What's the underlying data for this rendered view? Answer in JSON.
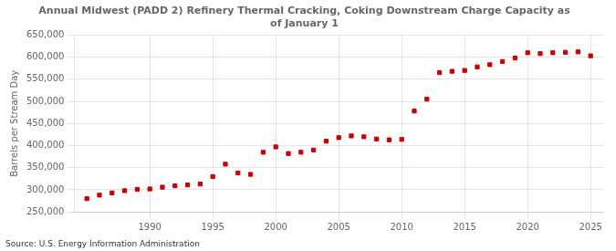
{
  "chart_data": {
    "type": "scatter",
    "title": "Annual Midwest (PADD 2) Refinery Thermal Cracking, Coking Downstream Charge Capacity as\nof January 1",
    "ylabel": "Barrels per Stream Day",
    "source": "Source: U.S. Energy Information Administration",
    "color": "#cc0000",
    "marker": "square",
    "grid": true,
    "x": [
      1985,
      1986,
      1987,
      1988,
      1989,
      1990,
      1991,
      1992,
      1993,
      1994,
      1995,
      1996,
      1997,
      1998,
      1999,
      2000,
      2001,
      2002,
      2003,
      2004,
      2005,
      2006,
      2007,
      2008,
      2009,
      2010,
      2011,
      2012,
      2013,
      2014,
      2015,
      2016,
      2017,
      2018,
      2019,
      2020,
      2021,
      2022,
      2023,
      2024,
      2025
    ],
    "values": [
      280000,
      288000,
      293000,
      298000,
      301000,
      302000,
      306000,
      309000,
      311000,
      313000,
      330000,
      358000,
      338000,
      335000,
      385000,
      397000,
      382000,
      385000,
      390000,
      410000,
      418000,
      422000,
      420000,
      415000,
      413000,
      414000,
      478000,
      505000,
      565000,
      568000,
      570000,
      578000,
      583000,
      590000,
      598000,
      610000,
      608000,
      610000,
      611000,
      612000,
      603000
    ],
    "xlim": [
      1984,
      2026
    ],
    "xticks": [
      1990,
      1995,
      2000,
      2005,
      2010,
      2015,
      2020,
      2025
    ],
    "ylim": [
      250000,
      650000
    ],
    "yticks": [
      {
        "value": 250000,
        "label": "250,000"
      },
      {
        "value": 300000,
        "label": "300,000"
      },
      {
        "value": 350000,
        "label": "350,000"
      },
      {
        "value": 400000,
        "label": "400,000"
      },
      {
        "value": 450000,
        "label": "450,000"
      },
      {
        "value": 500000,
        "label": "500,000"
      },
      {
        "value": 550000,
        "label": "550,000"
      },
      {
        "value": 600000,
        "label": "600,000"
      },
      {
        "value": 650000,
        "label": "650,000"
      }
    ]
  }
}
